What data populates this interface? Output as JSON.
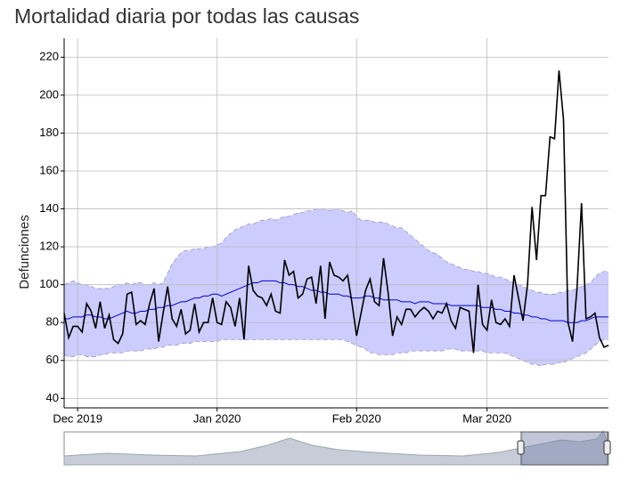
{
  "chart_data": {
    "type": "line",
    "title": "Mortalidad diaria por todas las causas",
    "y_label": "Defunciones",
    "xlim": [
      0,
      121
    ],
    "xticks": [
      {
        "value": 3,
        "label": "Dec 2019"
      },
      {
        "value": 34,
        "label": "Jan 2020"
      },
      {
        "value": 65,
        "label": "Feb 2020"
      },
      {
        "value": 94,
        "label": "Mar 2020"
      }
    ],
    "ylim": [
      35,
      230
    ],
    "yticks": [
      40,
      60,
      80,
      100,
      120,
      140,
      160,
      180,
      200,
      220
    ],
    "grid": true,
    "band": {
      "color": "#ccccff",
      "upper": [
        100,
        101,
        102,
        101,
        100,
        100,
        99,
        98,
        98,
        98,
        98,
        99,
        100,
        100,
        101,
        100,
        101,
        101,
        100,
        100,
        101,
        100,
        101,
        106,
        111,
        114,
        117,
        118,
        118,
        119,
        119,
        119,
        120,
        120,
        121,
        122,
        125,
        127,
        129,
        130,
        131,
        132,
        132,
        133,
        134,
        134,
        135,
        134,
        135,
        136,
        136,
        137,
        138,
        138,
        139,
        139,
        140,
        140,
        140,
        139,
        140,
        140,
        139,
        138,
        139,
        136,
        134,
        134,
        134,
        133,
        133,
        133,
        132,
        131,
        130,
        130,
        128,
        126,
        124,
        122,
        120,
        118,
        117,
        116,
        114,
        112,
        111,
        110,
        109,
        108,
        108,
        107,
        107,
        106,
        106,
        105,
        104,
        104,
        103,
        102,
        101,
        100,
        99,
        98,
        97,
        96,
        96,
        95,
        95,
        95,
        96,
        96,
        97,
        97,
        98,
        99,
        100,
        101,
        104,
        106,
        107,
        107
      ],
      "lower": [
        63,
        62,
        62,
        63,
        63,
        62,
        62,
        62,
        63,
        63,
        64,
        64,
        64,
        64,
        65,
        65,
        65,
        65,
        66,
        66,
        66,
        67,
        67,
        68,
        68,
        68,
        69,
        69,
        69,
        70,
        70,
        70,
        70,
        70,
        70,
        71,
        71,
        71,
        71,
        71,
        71,
        71,
        71,
        71,
        71,
        71,
        71,
        71,
        71,
        71,
        71,
        71,
        71,
        71,
        71,
        71,
        71,
        71,
        71,
        71,
        71,
        71,
        71,
        70,
        69,
        68,
        67,
        66,
        64,
        64,
        63,
        63,
        63,
        63,
        64,
        64,
        64,
        65,
        65,
        65,
        65,
        65,
        65,
        65,
        65,
        66,
        66,
        66,
        65,
        65,
        65,
        65,
        65,
        65,
        64,
        64,
        64,
        64,
        64,
        63,
        62,
        61,
        60,
        59,
        58,
        58,
        57,
        58,
        58,
        58,
        59,
        59,
        60,
        61,
        62,
        63,
        64,
        66,
        68,
        70,
        71,
        71
      ]
    },
    "series": [
      {
        "color": "#0000cc",
        "values": [
          82,
          82,
          83,
          83,
          83,
          84,
          84,
          83,
          83,
          82,
          82,
          83,
          84,
          85,
          86,
          85,
          85,
          86,
          86,
          87,
          87,
          88,
          88,
          89,
          89,
          90,
          91,
          91,
          92,
          93,
          93,
          94,
          94,
          95,
          95,
          94,
          95,
          96,
          97,
          98,
          99,
          100,
          101,
          101,
          102,
          102,
          102,
          102,
          101,
          101,
          100,
          100,
          99,
          99,
          98,
          97,
          97,
          96,
          96,
          95,
          95,
          95,
          94,
          94,
          93,
          93,
          93,
          94,
          94,
          93,
          93,
          92,
          92,
          92,
          92,
          91,
          91,
          91,
          90,
          91,
          91,
          91,
          90,
          90,
          90,
          90,
          89,
          89,
          89,
          89,
          89,
          89,
          89,
          88,
          88,
          88,
          87,
          87,
          86,
          86,
          85,
          85,
          84,
          84,
          83,
          83,
          82,
          82,
          81,
          81,
          81,
          81,
          80,
          80,
          80,
          81,
          81,
          82,
          83,
          83,
          83,
          83
        ]
      },
      {
        "color": "#000000",
        "values": [
          85,
          72,
          78,
          78,
          75,
          90,
          86,
          77,
          91,
          77,
          84,
          71,
          69,
          74,
          95,
          96,
          79,
          81,
          79,
          90,
          98,
          70,
          85,
          99,
          82,
          78,
          87,
          74,
          76,
          90,
          75,
          80,
          80,
          93,
          80,
          79,
          91,
          88,
          78,
          93,
          71,
          110,
          97,
          94,
          93,
          89,
          95,
          86,
          85,
          113,
          105,
          107,
          93,
          95,
          103,
          104,
          90,
          110,
          82,
          112,
          105,
          104,
          102,
          105,
          90,
          73,
          85,
          97,
          103,
          91,
          89,
          114,
          96,
          73,
          83,
          79,
          87,
          87,
          83,
          86,
          88,
          86,
          82,
          86,
          85,
          90,
          81,
          77,
          88,
          87,
          86,
          64,
          100,
          79,
          76,
          92,
          80,
          79,
          82,
          78,
          105,
          93,
          81,
          100,
          141,
          113,
          147,
          147,
          178,
          177,
          213,
          187,
          80,
          70,
          98,
          143,
          82,
          83,
          85,
          72,
          67,
          68
        ]
      }
    ]
  }
}
